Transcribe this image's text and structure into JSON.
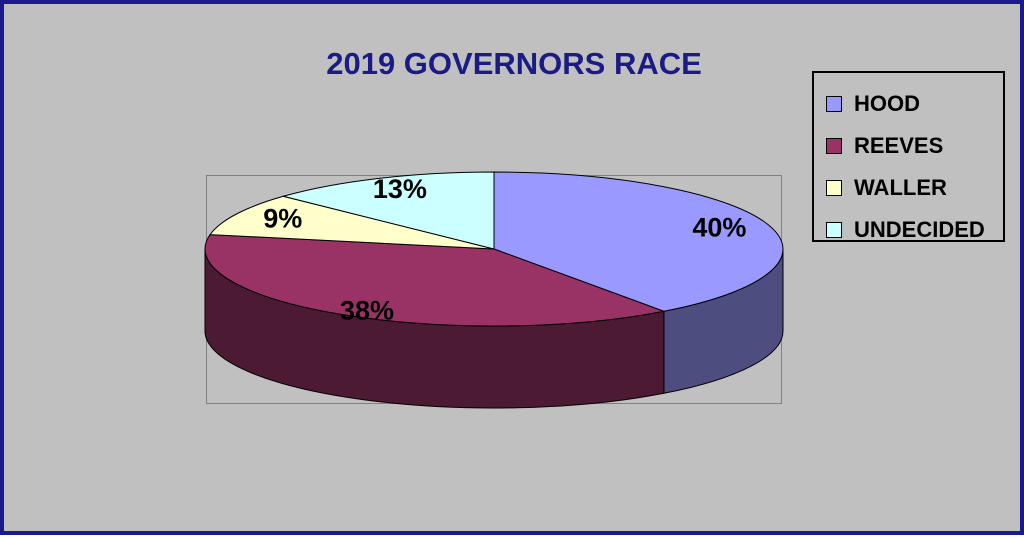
{
  "chart_data": {
    "type": "pie",
    "title": "2019 GOVERNORS RACE",
    "slices": [
      {
        "name": "HOOD",
        "value": 40,
        "label": "40%",
        "color": "#9999ff",
        "side_color": "#4d4d80"
      },
      {
        "name": "REEVES",
        "value": 38,
        "label": "38%",
        "color": "#993366",
        "side_color": "#4c1a33"
      },
      {
        "name": "WALLER",
        "value": 9,
        "label": "9%",
        "color": "#ffffcc",
        "side_color": "#808066"
      },
      {
        "name": "UNDECIDED",
        "value": 13,
        "label": "13%",
        "color": "#ccffff",
        "side_color": "#668080"
      }
    ],
    "legend_position": "right",
    "three_d": true
  },
  "colors": {
    "background": "#c0c0c0",
    "border": "#1a1a8c",
    "title": "#1b1b85"
  }
}
